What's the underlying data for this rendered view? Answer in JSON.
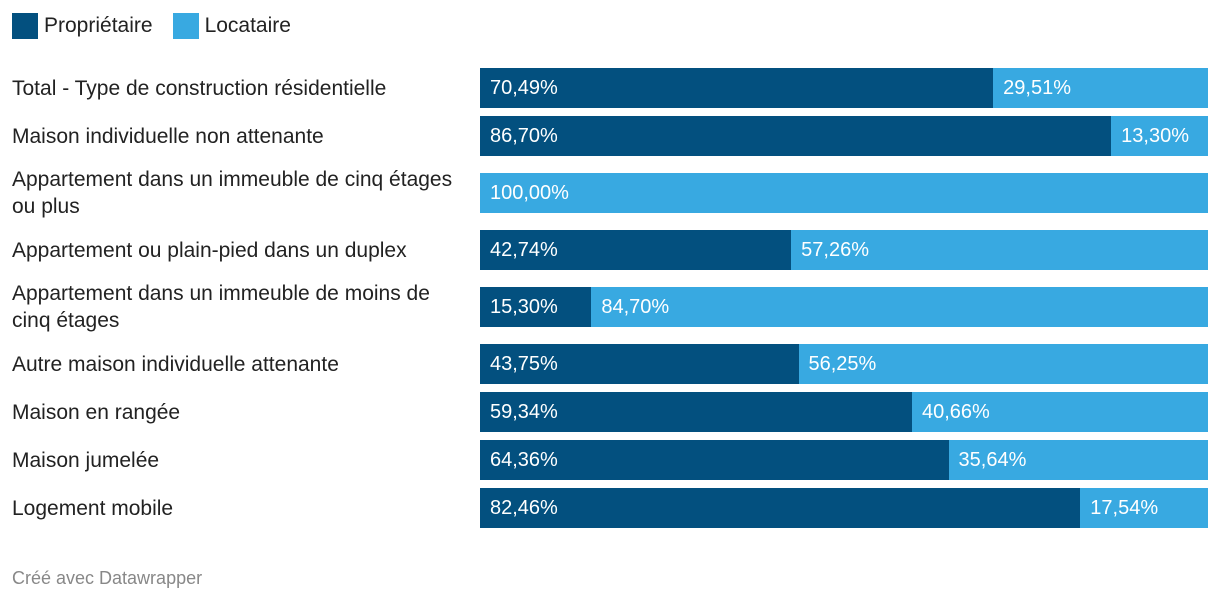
{
  "colors": {
    "proprietaire": "#03507f",
    "locataire": "#38a9e1"
  },
  "chart_data": {
    "type": "bar",
    "stacked": true,
    "orientation": "horizontal",
    "xlim": [
      0,
      100
    ],
    "legend_placement": "top-left",
    "categories": [
      "Total - Type de construction résidentielle",
      "Maison individuelle non attenante",
      "Appartement dans un immeuble de cinq étages ou plus",
      "Appartement ou plain-pied dans un duplex",
      "Appartement dans un immeuble de moins de cinq étages",
      "Autre maison individuelle attenante",
      "Maison en rangée",
      "Maison jumelée",
      "Logement mobile"
    ],
    "series": [
      {
        "name": "Propriétaire",
        "values": [
          70.49,
          86.7,
          0,
          42.74,
          15.3,
          43.75,
          59.34,
          64.36,
          82.46
        ],
        "labels": [
          "70,49%",
          "86,70%",
          "",
          "42,74%",
          "15,30%",
          "43,75%",
          "59,34%",
          "64,36%",
          "82,46%"
        ]
      },
      {
        "name": "Locataire",
        "values": [
          29.51,
          13.3,
          100.0,
          57.26,
          84.7,
          56.25,
          40.66,
          35.64,
          17.54
        ],
        "labels": [
          "29,51%",
          "13,30%",
          "100,00%",
          "57,26%",
          "84,70%",
          "56,25%",
          "40,66%",
          "35,64%",
          "17,54%"
        ]
      }
    ]
  },
  "footer": {
    "credit": "Créé avec Datawrapper"
  }
}
